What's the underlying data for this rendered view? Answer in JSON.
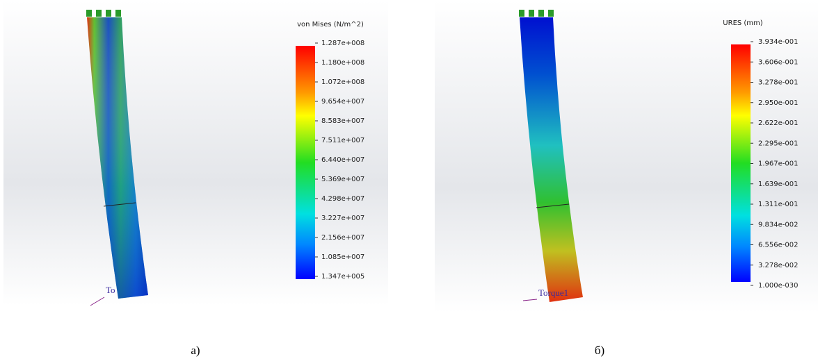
{
  "panels": [
    {
      "legend": {
        "title": "von Mises (N/m^2)",
        "labels": [
          "1.287e+008",
          "1.180e+008",
          "1.072e+008",
          "9.654e+007",
          "8.583e+007",
          "7.511e+007",
          "6.440e+007",
          "5.369e+007",
          "4.298e+007",
          "3.227e+007",
          "2.156e+007",
          "1.085e+007",
          "1.347e+005"
        ]
      },
      "load_label": "To",
      "caption": "а)"
    },
    {
      "legend": {
        "title": "URES (mm)",
        "labels": [
          "3.934e-001",
          "3.606e-001",
          "3.278e-001",
          "2.950e-001",
          "2.622e-001",
          "2.295e-001",
          "1.967e-001",
          "1.639e-001",
          "1.311e-001",
          "9.834e-002",
          "6.556e-002",
          "3.278e-002",
          "1.000e-030"
        ]
      },
      "load_label": "Torque1",
      "caption": "б)"
    }
  ]
}
